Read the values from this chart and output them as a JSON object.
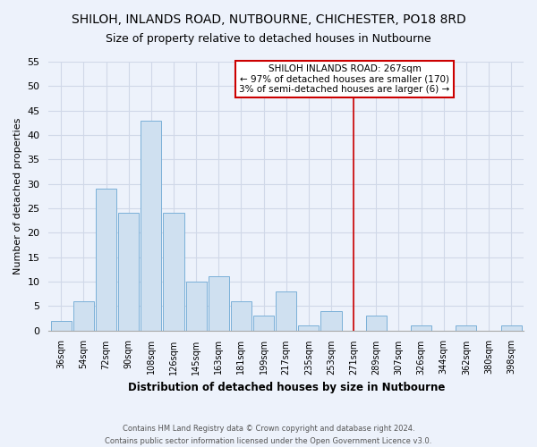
{
  "title": "SHILOH, INLANDS ROAD, NUTBOURNE, CHICHESTER, PO18 8RD",
  "subtitle": "Size of property relative to detached houses in Nutbourne",
  "xlabel": "Distribution of detached houses by size in Nutbourne",
  "ylabel": "Number of detached properties",
  "bar_labels": [
    "36sqm",
    "54sqm",
    "72sqm",
    "90sqm",
    "108sqm",
    "126sqm",
    "145sqm",
    "163sqm",
    "181sqm",
    "199sqm",
    "217sqm",
    "235sqm",
    "253sqm",
    "271sqm",
    "289sqm",
    "307sqm",
    "326sqm",
    "344sqm",
    "362sqm",
    "380sqm",
    "398sqm"
  ],
  "bar_values": [
    2,
    6,
    29,
    24,
    43,
    24,
    10,
    11,
    6,
    3,
    8,
    1,
    4,
    0,
    3,
    0,
    1,
    0,
    1,
    0,
    1
  ],
  "bar_color": "#cfe0f0",
  "bar_edge_color": "#7ab0d8",
  "grid_color": "#d0d8e8",
  "annotation_line_x_label": "271sqm",
  "annotation_line_color": "#cc0000",
  "annotation_box_text": "SHILOH INLANDS ROAD: 267sqm\n← 97% of detached houses are smaller (170)\n3% of semi-detached houses are larger (6) →",
  "annotation_box_color": "#ffffff",
  "annotation_box_edge_color": "#cc0000",
  "footer_line1": "Contains HM Land Registry data © Crown copyright and database right 2024.",
  "footer_line2": "Contains public sector information licensed under the Open Government Licence v3.0.",
  "ylim": [
    0,
    55
  ],
  "yticks": [
    0,
    5,
    10,
    15,
    20,
    25,
    30,
    35,
    40,
    45,
    50,
    55
  ],
  "background_color": "#edf2fb",
  "title_fontsize": 10,
  "subtitle_fontsize": 9
}
